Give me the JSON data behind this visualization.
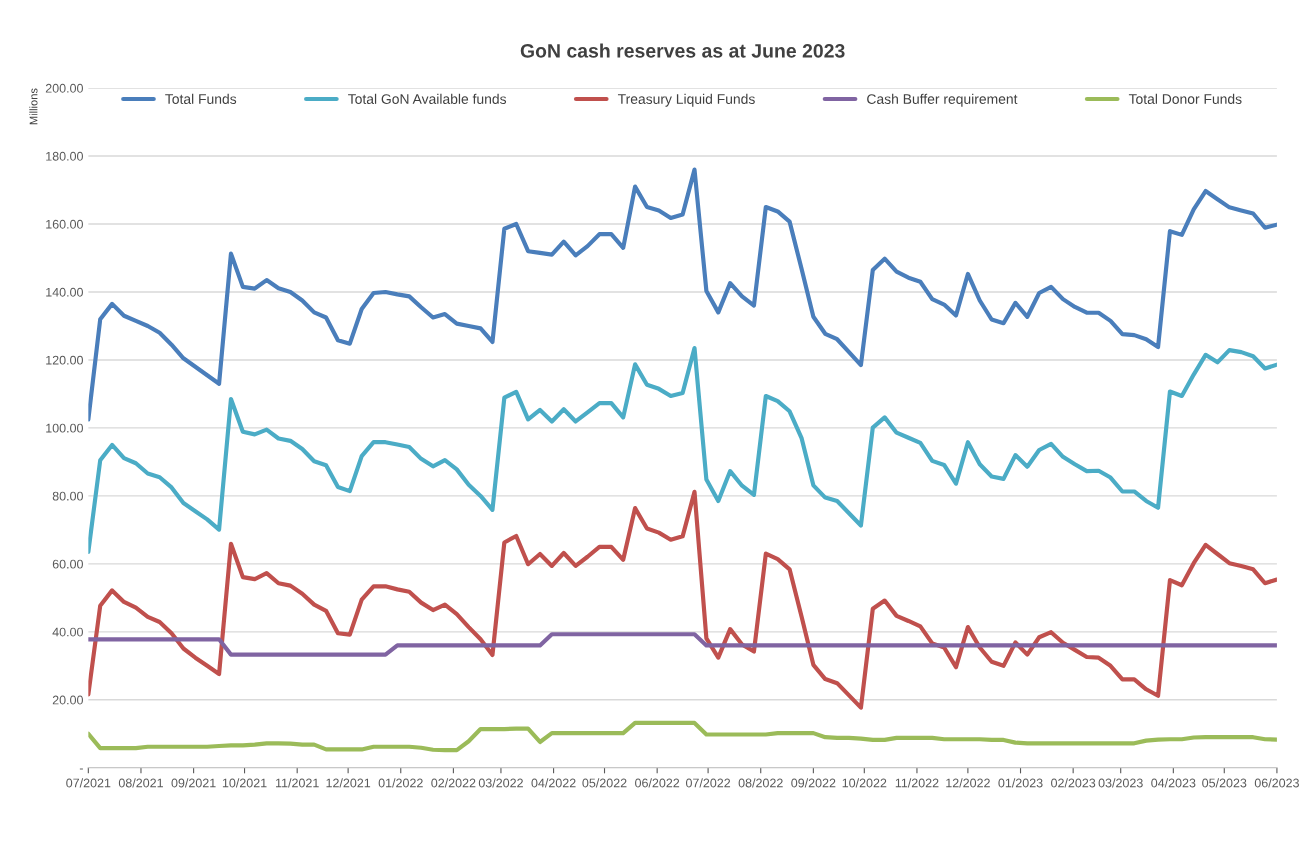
{
  "chart_data": {
    "type": "line",
    "title": "GoN cash reserves as at June 2023",
    "ylabel": "Millions",
    "x": [
      "2021-07-01",
      "2021-07-08",
      "2021-07-15",
      "2021-07-22",
      "2021-07-29",
      "2021-08-05",
      "2021-08-12",
      "2021-08-19",
      "2021-08-26",
      "2021-09-02",
      "2021-09-09",
      "2021-09-16",
      "2021-09-23",
      "2021-09-30",
      "2021-10-07",
      "2021-10-14",
      "2021-10-21",
      "2021-10-28",
      "2021-11-04",
      "2021-11-11",
      "2021-11-18",
      "2021-11-25",
      "2021-12-02",
      "2021-12-09",
      "2021-12-16",
      "2021-12-23",
      "2021-12-30",
      "2022-01-06",
      "2022-01-13",
      "2022-01-20",
      "2022-01-27",
      "2022-02-03",
      "2022-02-10",
      "2022-02-17",
      "2022-02-24",
      "2022-03-03",
      "2022-03-10",
      "2022-03-17",
      "2022-03-24",
      "2022-03-31",
      "2022-04-07",
      "2022-04-14",
      "2022-04-21",
      "2022-04-28",
      "2022-05-05",
      "2022-05-12",
      "2022-05-19",
      "2022-05-26",
      "2022-06-02",
      "2022-06-09",
      "2022-06-16",
      "2022-06-23",
      "2022-06-30",
      "2022-07-07",
      "2022-07-14",
      "2022-07-21",
      "2022-07-28",
      "2022-08-04",
      "2022-08-11",
      "2022-08-18",
      "2022-08-25",
      "2022-09-01",
      "2022-09-08",
      "2022-09-15",
      "2022-09-22",
      "2022-09-29",
      "2022-10-06",
      "2022-10-13",
      "2022-10-20",
      "2022-10-27",
      "2022-11-03",
      "2022-11-10",
      "2022-11-17",
      "2022-11-24",
      "2022-12-01",
      "2022-12-08",
      "2022-12-15",
      "2022-12-22",
      "2022-12-29",
      "2023-01-05",
      "2023-01-12",
      "2023-01-19",
      "2023-01-26",
      "2023-02-02",
      "2023-02-09",
      "2023-02-16",
      "2023-02-23",
      "2023-03-02",
      "2023-03-09",
      "2023-03-16",
      "2023-03-23",
      "2023-03-30",
      "2023-04-06",
      "2023-04-13",
      "2023-04-20",
      "2023-04-27",
      "2023-05-04",
      "2023-05-11",
      "2023-05-18",
      "2023-05-25",
      "2023-06-01"
    ],
    "series": [
      {
        "name": "Total Funds",
        "color": "#4a7ebb",
        "values": [
          102.5,
          132,
          136.5,
          133,
          131.5,
          130,
          128,
          124.5,
          120.5,
          118,
          115.5,
          113,
          151.3,
          141.5,
          141,
          143.5,
          141.1,
          140,
          137.5,
          134,
          132.5,
          125.8,
          124.8,
          135,
          139.7,
          140,
          139.3,
          138.7,
          135.5,
          132.5,
          133.5,
          130.7,
          130,
          129.3,
          125.3,
          158.6,
          160,
          152,
          151.5,
          151,
          154.8,
          150.8,
          153.5,
          157,
          157,
          153,
          171,
          165,
          164,
          161.8,
          162.8,
          176,
          140.3,
          134,
          142.6,
          138.7,
          136,
          165,
          163.7,
          160.7,
          146.9,
          132.7,
          127.7,
          126.1,
          122.3,
          118.5,
          146.5,
          149.8,
          146,
          144.2,
          143,
          137.9,
          136.3,
          133.1,
          145.3,
          137.5,
          131.9,
          130.8,
          136.8,
          132.7,
          139.7,
          141.5,
          137.9,
          135.6,
          133.9,
          133.9,
          131.5,
          127.6,
          127.3,
          126.1,
          123.8,
          157.9,
          156.8,
          164.3,
          169.7,
          167.3,
          164.9,
          164,
          163.1,
          158.9,
          159.8
        ]
      },
      {
        "name": "Total GoN Available funds",
        "color": "#4bacc6",
        "values": [
          63.5,
          90.5,
          95,
          91.1,
          89.6,
          86.6,
          85.5,
          82.5,
          77.9,
          75.5,
          73.1,
          70.1,
          108.5,
          98.9,
          98.1,
          99.5,
          96.9,
          96.2,
          93.8,
          90.2,
          89,
          82.6,
          81.4,
          91.7,
          95.8,
          95.8,
          95.1,
          94.4,
          90.9,
          88.7,
          90.5,
          87.8,
          83.3,
          80,
          75.9,
          108.9,
          110.6,
          102.5,
          105.3,
          101.9,
          105.5,
          101.9,
          104.6,
          107.3,
          107.3,
          103.1,
          118.7,
          112.7,
          111.5,
          109.4,
          110.3,
          123.5,
          84.8,
          78.5,
          87.3,
          83,
          80.3,
          109.4,
          107.9,
          104.9,
          97.1,
          83.1,
          79.5,
          78.5,
          74.9,
          71.3,
          100.1,
          103.1,
          98.6,
          97.1,
          95.6,
          90.3,
          89.1,
          83.6,
          95.8,
          89.3,
          85.7,
          85,
          92,
          88.6,
          93.5,
          95.3,
          91.5,
          89.3,
          87.3,
          87.4,
          85.4,
          81.3,
          81.3,
          78.5,
          76.5,
          110.7,
          109.4,
          115.7,
          121.5,
          119.3,
          122.9,
          122.3,
          121.1,
          117.5,
          118.6
        ]
      },
      {
        "name": "Treasury Liquid Funds",
        "color": "#c0504d",
        "values": [
          21.6,
          47.7,
          52.2,
          48.8,
          47.1,
          44.4,
          42.9,
          39.6,
          35.1,
          32.4,
          30,
          27.6,
          65.9,
          56.1,
          55.5,
          57.3,
          54.3,
          53.6,
          51.2,
          48,
          46.2,
          39.6,
          39.2,
          49.5,
          53.4,
          53.4,
          52.5,
          51.8,
          48.6,
          46.4,
          48,
          45.2,
          41.4,
          37.8,
          33.2,
          66.3,
          68.2,
          59.9,
          62.9,
          59.4,
          63.2,
          59.4,
          62.1,
          65,
          65,
          61.2,
          76.4,
          70.4,
          69.2,
          67.1,
          68.1,
          81.2,
          38.1,
          32.4,
          40.8,
          36.3,
          34.2,
          63,
          61.4,
          58.4,
          44.6,
          30.3,
          26.1,
          24.9,
          21.3,
          17.7,
          46.8,
          49.2,
          44.7,
          43.2,
          41.6,
          36.6,
          35.4,
          29.6,
          41.4,
          35.4,
          31.2,
          30,
          36.9,
          33.3,
          38.4,
          39.9,
          36.8,
          34.7,
          32.6,
          32.4,
          30,
          26,
          26,
          23.1,
          21.2,
          55.2,
          53.7,
          60.2,
          65.6,
          62.9,
          60.2,
          59.4,
          58.4,
          54.3,
          55.4
        ]
      },
      {
        "name": "Cash Buffer requirement",
        "color": "#8064a2",
        "values": [
          37.8,
          37.8,
          37.8,
          37.8,
          37.8,
          37.8,
          37.8,
          37.8,
          37.8,
          37.8,
          37.8,
          37.8,
          33.3,
          33.3,
          33.3,
          33.3,
          33.3,
          33.3,
          33.3,
          33.3,
          33.3,
          33.3,
          33.3,
          33.3,
          33.3,
          33.3,
          36,
          36,
          36,
          36,
          36,
          36,
          36,
          36,
          36,
          36,
          36,
          36,
          36,
          39.3,
          39.3,
          39.3,
          39.3,
          39.3,
          39.3,
          39.3,
          39.3,
          39.3,
          39.3,
          39.3,
          39.3,
          39.3,
          36,
          36,
          36,
          36,
          36,
          36,
          36,
          36,
          36,
          36,
          36,
          36,
          36,
          36,
          36,
          36,
          36,
          36,
          36,
          36,
          36,
          36,
          36,
          36,
          36,
          36,
          36,
          36,
          36,
          36,
          36,
          36,
          36,
          36,
          36,
          36,
          36,
          36,
          36,
          36,
          36,
          36,
          36,
          36,
          36,
          36,
          36,
          36,
          36
        ]
      },
      {
        "name": "Total Donor Funds",
        "color": "#9bbb59",
        "values": [
          10,
          5.8,
          5.8,
          5.8,
          5.8,
          6.2,
          6.2,
          6.2,
          6.2,
          6.2,
          6.2,
          6.4,
          6.6,
          6.6,
          6.8,
          7.2,
          7.2,
          7.1,
          6.8,
          6.8,
          5.4,
          5.4,
          5.4,
          5.4,
          6.2,
          6.2,
          6.2,
          6.2,
          5.9,
          5.3,
          5.2,
          5.2,
          7.8,
          11.4,
          11.4,
          11.4,
          11.5,
          11.5,
          7.6,
          10.2,
          10.2,
          10.2,
          10.2,
          10.2,
          10.2,
          10.2,
          13.2,
          13.2,
          13.2,
          13.2,
          13.2,
          13.2,
          9.8,
          9.8,
          9.8,
          9.8,
          9.8,
          9.8,
          10.2,
          10.2,
          10.2,
          10.2,
          9,
          8.8,
          8.8,
          8.6,
          8.2,
          8.2,
          8.8,
          8.8,
          8.8,
          8.8,
          8.4,
          8.4,
          8.4,
          8.4,
          8.2,
          8.2,
          7.4,
          7.2,
          7.2,
          7.2,
          7.2,
          7.2,
          7.2,
          7.2,
          7.2,
          7.2,
          7.2,
          8,
          8.3,
          8.4,
          8.4,
          8.9,
          9,
          9,
          9,
          9,
          9,
          8.4,
          8.3
        ]
      }
    ],
    "xlim": [
      "2021-07-01",
      "2023-06-01"
    ],
    "xticks": [
      {
        "value": "2021-07-01",
        "label": "07/2021"
      },
      {
        "value": "2021-08-01",
        "label": "08/2021"
      },
      {
        "value": "2021-09-01",
        "label": "09/2021"
      },
      {
        "value": "2021-10-01",
        "label": "10/2021"
      },
      {
        "value": "2021-11-01",
        "label": "11/2021"
      },
      {
        "value": "2021-12-01",
        "label": "12/2021"
      },
      {
        "value": "2022-01-01",
        "label": "01/2022"
      },
      {
        "value": "2022-02-01",
        "label": "02/2022"
      },
      {
        "value": "2022-03-01",
        "label": "03/2022"
      },
      {
        "value": "2022-04-01",
        "label": "04/2022"
      },
      {
        "value": "2022-05-01",
        "label": "05/2022"
      },
      {
        "value": "2022-06-01",
        "label": "06/2022"
      },
      {
        "value": "2022-07-01",
        "label": "07/2022"
      },
      {
        "value": "2022-08-01",
        "label": "08/2022"
      },
      {
        "value": "2022-09-01",
        "label": "09/2022"
      },
      {
        "value": "2022-10-01",
        "label": "10/2022"
      },
      {
        "value": "2022-11-01",
        "label": "11/2022"
      },
      {
        "value": "2022-12-01",
        "label": "12/2022"
      },
      {
        "value": "2023-01-01",
        "label": "01/2023"
      },
      {
        "value": "2023-02-01",
        "label": "02/2023"
      },
      {
        "value": "2023-03-01",
        "label": "03/2023"
      },
      {
        "value": "2023-04-01",
        "label": "04/2023"
      },
      {
        "value": "2023-05-01",
        "label": "05/2023"
      },
      {
        "value": "2023-06-01",
        "label": "06/2023"
      }
    ],
    "ylim": [
      0,
      200
    ],
    "yticks": [
      {
        "value": 0,
        "label": "-"
      },
      {
        "value": 20,
        "label": "20.00"
      },
      {
        "value": 40,
        "label": "40.00"
      },
      {
        "value": 60,
        "label": "60.00"
      },
      {
        "value": 80,
        "label": "80.00"
      },
      {
        "value": 100,
        "label": "100.00"
      },
      {
        "value": 120,
        "label": "120.00"
      },
      {
        "value": 140,
        "label": "140.00"
      },
      {
        "value": 160,
        "label": "160.00"
      },
      {
        "value": 180,
        "label": "180.00"
      },
      {
        "value": 200,
        "label": "200.00"
      }
    ],
    "grid": "y",
    "legend": "top",
    "marker": "none",
    "line_style": "solid"
  }
}
